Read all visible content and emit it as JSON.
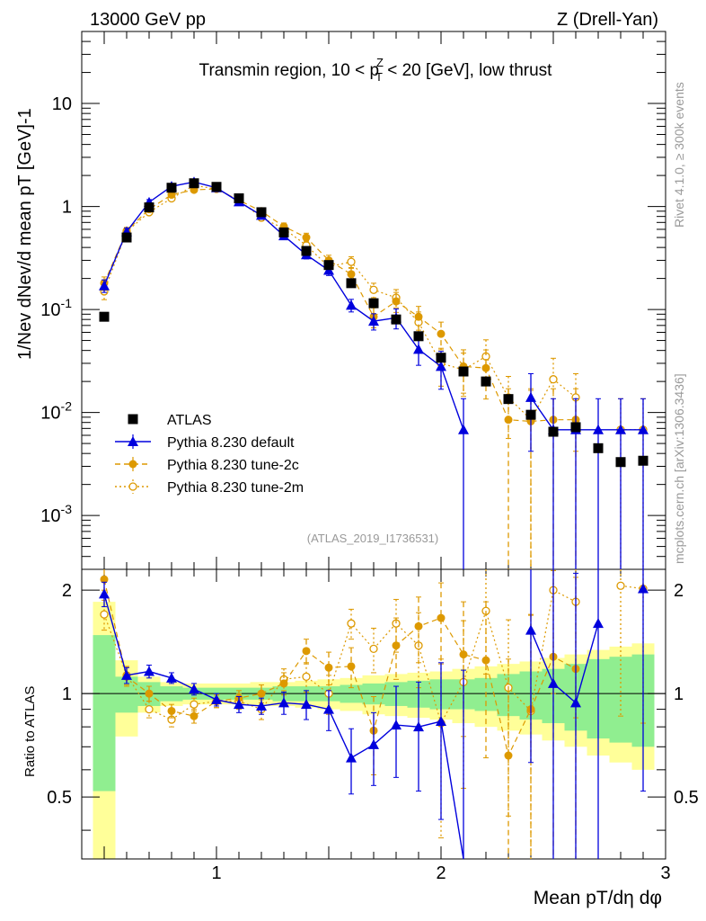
{
  "header": {
    "left": "13000 GeV pp",
    "right": "Z (Drell-Yan)"
  },
  "side_labels": {
    "rivet": "Rivet 4.1.0, ≥ 300k events",
    "source": "mcplots.cern.ch [arXiv:1306.3436]"
  },
  "chart_data": {
    "type": "line",
    "title": "Transmin region, 10 < pTZ < 20 [GeV], low thrust",
    "title_parts": {
      "pre": "Transmin region, 10 < p",
      "sup": "Z",
      "sub": "T",
      "post": " < 20 [GeV], low thrust"
    },
    "analysis_id": "(ATLAS_2019_I1736531)",
    "xlabel": "Mean pT/dη dφ",
    "ylabel": "1/Nev dNev/d mean pT [GeV]-1",
    "ratio_ylabel": "Ratio to ATLAS",
    "xlim": [
      0.4,
      3.0
    ],
    "ylim": [
      0.0003,
      50
    ],
    "yscale": "log",
    "ratio_ylim": [
      0.33,
      2.3
    ],
    "x_ticks": [
      "1",
      "2",
      "3"
    ],
    "y_ticks": [
      {
        "base": "10",
        "exp": "-3"
      },
      {
        "base": "10",
        "exp": "-2"
      },
      {
        "base": "10",
        "exp": "-1"
      },
      {
        "base": "1",
        "exp": ""
      },
      {
        "base": "10",
        "exp": ""
      }
    ],
    "ratio_ticks": [
      "0.5",
      "1",
      "2"
    ],
    "x": [
      0.5,
      0.6,
      0.7,
      0.8,
      0.9,
      1.0,
      1.1,
      1.2,
      1.3,
      1.4,
      1.5,
      1.6,
      1.7,
      1.8,
      1.9,
      2.0,
      2.1,
      2.2,
      2.3,
      2.4,
      2.5,
      2.6,
      2.7,
      2.8,
      2.9
    ],
    "legend": {
      "position": "lower-left",
      "entries": [
        "ATLAS",
        "Pythia 8.230 default",
        "Pythia 8.230 tune-2c",
        "Pythia 8.230 tune-2m"
      ]
    },
    "data": {
      "name": "ATLAS",
      "values": [
        0.085,
        0.5,
        0.98,
        1.52,
        1.68,
        1.55,
        1.2,
        0.88,
        0.56,
        0.37,
        0.27,
        0.18,
        0.115,
        0.08,
        0.055,
        0.034,
        0.025,
        0.02,
        0.0135,
        0.0095,
        0.0065,
        0.0072,
        0.0045,
        0.0033,
        0.0034
      ],
      "band_stat": [
        0.48,
        0.12,
        0.08,
        0.05,
        0.04,
        0.04,
        0.04,
        0.04,
        0.05,
        0.05,
        0.05,
        0.06,
        0.07,
        0.08,
        0.09,
        0.1,
        0.1,
        0.11,
        0.14,
        0.16,
        0.18,
        0.22,
        0.26,
        0.28,
        0.3
      ],
      "band_total": [
        0.85,
        0.25,
        0.12,
        0.08,
        0.07,
        0.07,
        0.07,
        0.08,
        0.08,
        0.09,
        0.1,
        0.11,
        0.13,
        0.14,
        0.15,
        0.16,
        0.18,
        0.2,
        0.22,
        0.24,
        0.27,
        0.3,
        0.34,
        0.37,
        0.4
      ]
    },
    "series": [
      {
        "name": "Pythia 8.230 default",
        "color": "#0000dd",
        "marker": "triangle",
        "values": [
          0.17,
          0.57,
          1.1,
          1.57,
          1.73,
          1.52,
          1.11,
          0.82,
          0.52,
          0.34,
          0.24,
          0.11,
          0.077,
          0.083,
          0.041,
          0.028,
          0.0068,
          null,
          null,
          0.014,
          0.0068,
          0.0068,
          0.0068,
          0.0068,
          0.0068
        ],
        "err": [
          0.14,
          0.08,
          0.06,
          0.05,
          0.05,
          0.05,
          0.05,
          0.06,
          0.07,
          0.09,
          0.11,
          0.14,
          0.18,
          0.22,
          0.3,
          0.4,
          1.0,
          0,
          0,
          0.7,
          1.0,
          1.0,
          1.0,
          1.0,
          1.0
        ],
        "ratio": [
          1.95,
          1.13,
          1.16,
          1.11,
          1.03,
          0.96,
          0.93,
          0.92,
          0.94,
          0.93,
          0.9,
          0.65,
          0.71,
          0.81,
          0.8,
          0.83,
          0.27,
          null,
          null,
          1.53,
          1.07,
          0.94,
          1.6,
          null,
          2.02
        ],
        "ratio_err": [
          0.16,
          0.06,
          0.05,
          0.04,
          0.04,
          0.04,
          0.05,
          0.05,
          0.07,
          0.09,
          0.12,
          0.14,
          0.17,
          0.24,
          0.28,
          0.4,
          0.9,
          0,
          0,
          0.9,
          1.3,
          1.3,
          1.5,
          0,
          1.5
        ]
      },
      {
        "name": "Pythia 8.230 tune-2c",
        "color": "#dd9900",
        "marker": "circle",
        "values": [
          0.18,
          0.58,
          0.94,
          1.3,
          1.45,
          1.48,
          1.15,
          0.9,
          0.64,
          0.5,
          0.3,
          0.22,
          0.085,
          0.12,
          0.085,
          0.058,
          0.028,
          0.027,
          0.0085,
          0.0082,
          0.0085,
          0.0085,
          null,
          null,
          null
        ],
        "err": [
          0.15,
          0.08,
          0.06,
          0.05,
          0.05,
          0.05,
          0.06,
          0.07,
          0.08,
          0.1,
          0.12,
          0.14,
          0.22,
          0.22,
          0.26,
          0.3,
          0.45,
          0.5,
          1.0,
          1.0,
          1.0,
          1.0,
          0,
          0,
          0
        ],
        "ratio": [
          2.15,
          1.12,
          1.0,
          0.89,
          0.86,
          0.95,
          0.97,
          1.0,
          1.07,
          1.33,
          1.19,
          1.2,
          0.78,
          1.38,
          1.57,
          1.66,
          1.3,
          1.25,
          0.66,
          0.9,
          1.28,
          1.18,
          null,
          null,
          null
        ],
        "ratio_err": [
          0.15,
          0.07,
          0.05,
          0.04,
          0.04,
          0.04,
          0.05,
          0.06,
          0.08,
          0.11,
          0.13,
          0.16,
          0.2,
          0.28,
          0.34,
          0.44,
          0.55,
          0.6,
          0.6,
          0.8,
          1.0,
          1.0,
          0,
          0,
          0
        ]
      },
      {
        "name": "Pythia 8.230 tune-2m",
        "color": "#dd9900",
        "marker": "open-circle",
        "values": [
          0.15,
          0.57,
          0.88,
          1.2,
          1.6,
          1.48,
          1.15,
          0.78,
          0.61,
          0.42,
          0.26,
          0.29,
          0.155,
          0.13,
          0.075,
          0.03,
          0.026,
          0.035,
          0.014,
          0.0085,
          0.021,
          0.014,
          null,
          0.0068,
          0.0068
        ],
        "err": [
          0.17,
          0.08,
          0.06,
          0.05,
          0.05,
          0.05,
          0.06,
          0.07,
          0.08,
          0.1,
          0.12,
          0.12,
          0.16,
          0.2,
          0.26,
          0.4,
          0.45,
          0.45,
          0.6,
          1.0,
          0.6,
          0.7,
          0,
          1.0,
          1.0
        ],
        "ratio": [
          1.7,
          1.13,
          0.9,
          0.84,
          0.93,
          0.95,
          0.95,
          0.9,
          1.1,
          1.12,
          1.0,
          1.6,
          1.35,
          1.6,
          1.38,
          0.82,
          1.08,
          1.74,
          1.04,
          0.89,
          2.0,
          1.85,
          null,
          2.06,
          2.02
        ],
        "ratio_err": [
          0.17,
          0.07,
          0.05,
          0.04,
          0.04,
          0.04,
          0.05,
          0.06,
          0.08,
          0.11,
          0.13,
          0.16,
          0.2,
          0.28,
          0.34,
          0.44,
          0.55,
          0.6,
          0.6,
          0.8,
          1.0,
          1.0,
          0,
          1.2,
          1.2
        ]
      }
    ],
    "colors": {
      "data": "#000000",
      "band_stat": "#90ee90",
      "band_total": "#ffff99",
      "grey_text": "#999999"
    }
  }
}
